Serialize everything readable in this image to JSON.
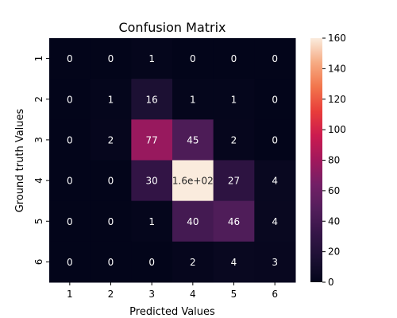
{
  "chart_data": {
    "type": "heatmap",
    "title": "Confusion Matrix",
    "xlabel": "Predicted Values",
    "ylabel": "Ground truth Values",
    "x_categories": [
      "1",
      "2",
      "3",
      "4",
      "5",
      "6"
    ],
    "y_categories": [
      "1",
      "2",
      "3",
      "4",
      "5",
      "6"
    ],
    "values": [
      [
        0,
        0,
        1,
        0,
        0,
        0
      ],
      [
        0,
        1,
        16,
        1,
        1,
        0
      ],
      [
        0,
        2,
        77,
        45,
        2,
        0
      ],
      [
        0,
        0,
        30,
        160,
        27,
        4
      ],
      [
        0,
        0,
        1,
        40,
        46,
        4
      ],
      [
        0,
        0,
        0,
        2,
        4,
        3
      ]
    ],
    "cell_labels": [
      [
        "0",
        "0",
        "1",
        "0",
        "0",
        "0"
      ],
      [
        "0",
        "1",
        "16",
        "1",
        "1",
        "0"
      ],
      [
        "0",
        "2",
        "77",
        "45",
        "2",
        "0"
      ],
      [
        "0",
        "0",
        "30",
        "1.6e+02",
        "27",
        "4"
      ],
      [
        "0",
        "0",
        "1",
        "40",
        "46",
        "4"
      ],
      [
        "0",
        "0",
        "0",
        "2",
        "4",
        "3"
      ]
    ],
    "colorbar": {
      "range": [
        0,
        160
      ],
      "ticks": [
        "0",
        "20",
        "40",
        "60",
        "80",
        "100",
        "120",
        "140",
        "160"
      ]
    },
    "colormap": "rocket",
    "grid": false
  }
}
